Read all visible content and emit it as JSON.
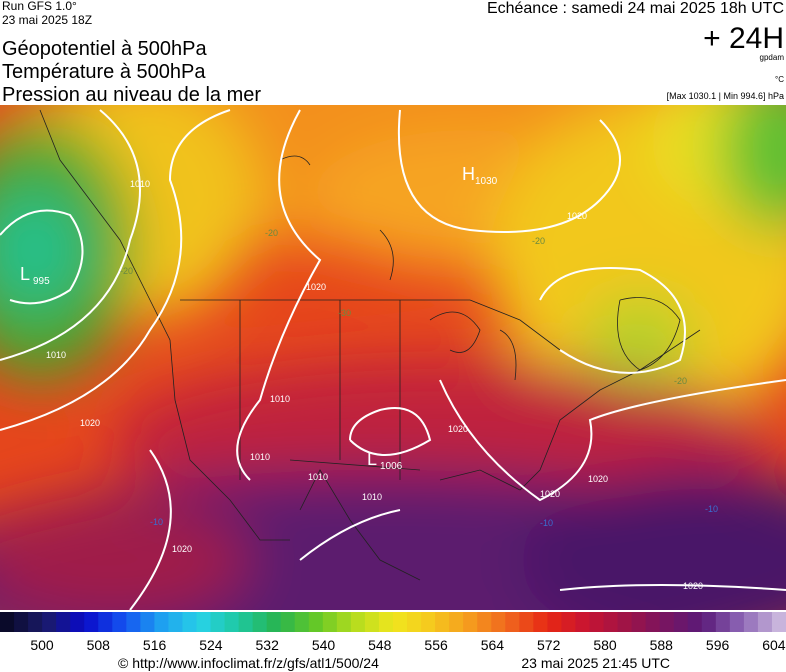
{
  "header": {
    "run": "Run GFS 1.0°",
    "run_date": "23 mai 2025 18Z",
    "echeance": "Echéance : samedi 24 mai 2025 18h UTC",
    "lead": "+ 24H",
    "unit_gpdam": "gpdam",
    "unit_temp": "°C",
    "extrema": "[Max 1030.1 | Min 994.6] hPa"
  },
  "titles": [
    "Géopotentiel à 500hPa",
    "Température à 500hPa",
    "Pression au niveau de la mer"
  ],
  "map": {
    "pressure_centers": [
      {
        "letter": "H",
        "value": "1030"
      },
      {
        "letter": "L",
        "value": "995"
      },
      {
        "letter": "L",
        "value": "1006"
      }
    ],
    "isobar_labels": [
      "1010",
      "1020",
      "1010",
      "1020",
      "1010",
      "1010",
      "1010",
      "1010",
      "1020",
      "1020",
      "1020",
      "1020",
      "1020",
      "1020"
    ],
    "temperature_labels": [
      "-20",
      "-30",
      "-20",
      "-10",
      "-10",
      "-10",
      "-20",
      "-20"
    ]
  },
  "colorbar": {
    "labels": [
      500,
      508,
      516,
      524,
      532,
      540,
      548,
      556,
      564,
      572,
      580,
      588,
      596,
      604
    ]
  },
  "footer": {
    "url": "© http://www.infoclimat.fr/z/gfs/atl1/500/24",
    "timestamp": "23 mai 2025 21:45 UTC"
  }
}
